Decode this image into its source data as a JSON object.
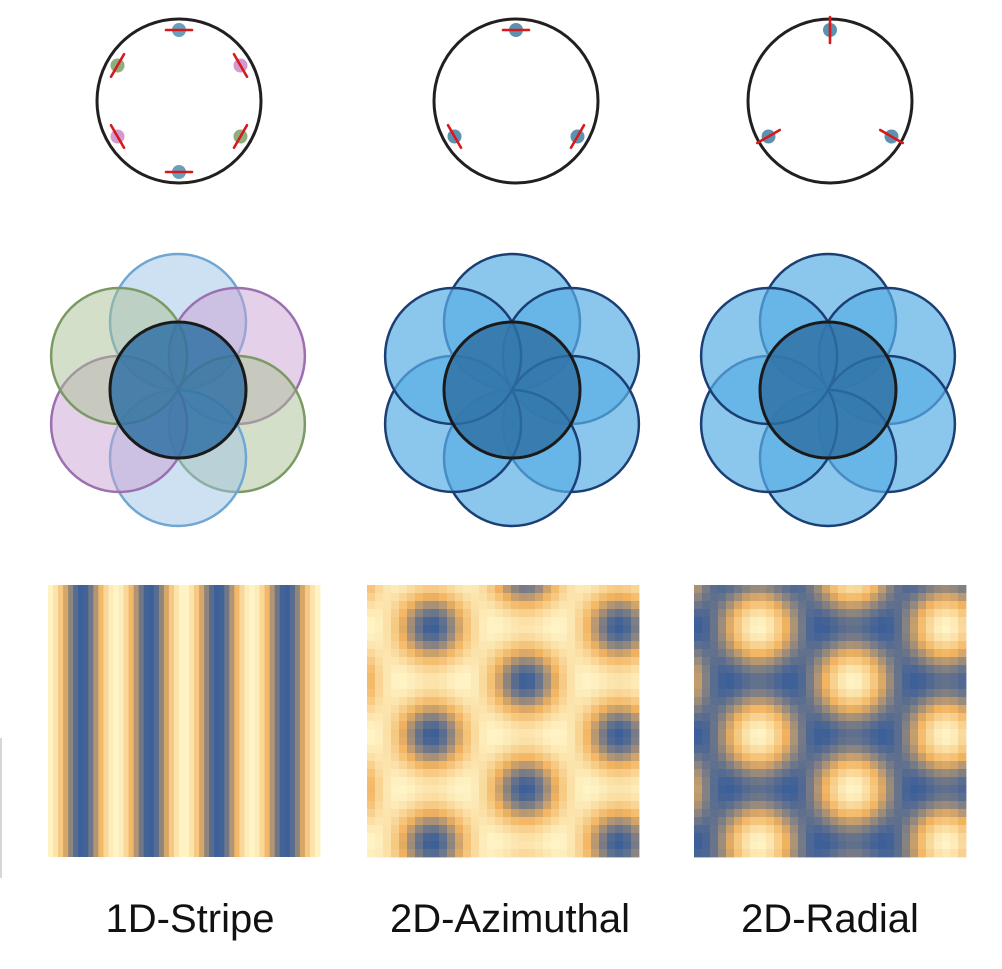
{
  "panels": [
    {
      "label": "1D-Stripe",
      "arrow_count": 6,
      "dot_colors": [
        "#4e8fb0",
        "#c98ac7",
        "#7aa06a",
        "#4e8fb0",
        "#c98ac7",
        "#7aa06a"
      ],
      "bar_style": "tangential",
      "disk_fill_colors": [
        "#9ec3e6",
        "#c9a1d1",
        "#a9bf93",
        "#9ec3e6",
        "#c9a1d1",
        "#a9bf93"
      ],
      "disk_stroke_colors": [
        "#6fa6d3",
        "#9b6fb0",
        "#7b9a63",
        "#6fa6d3",
        "#9b6fb0",
        "#7b9a63"
      ],
      "pattern": "stripe"
    },
    {
      "label": "2D-Azimuthal",
      "arrow_count": 3,
      "dot_colors": [
        "#3f7fa2",
        "#3f7fa2",
        "#3f7fa2"
      ],
      "bar_style": "tangential",
      "disk_fill_colors": [
        "#5aaee6"
      ],
      "disk_stroke_colors": [
        "#1b3f73"
      ],
      "pattern": "azimuthal"
    },
    {
      "label": "2D-Radial",
      "arrow_count": 3,
      "dot_colors": [
        "#3f7fa2",
        "#3f7fa2",
        "#3f7fa2"
      ],
      "bar_style": "radial",
      "disk_fill_colors": [
        "#5aaee6"
      ],
      "disk_stroke_colors": [
        "#1b3f73"
      ],
      "pattern": "radial"
    }
  ],
  "colors": {
    "ring_stroke": "#231f20",
    "bar": "#d7191c",
    "center_disk_fill": "#2d6fa3",
    "center_disk_stroke": "#1a1a1a",
    "pattern_dark": "#3b5f99",
    "pattern_mid": "#f2b35f",
    "pattern_light": "#fff4c6"
  }
}
